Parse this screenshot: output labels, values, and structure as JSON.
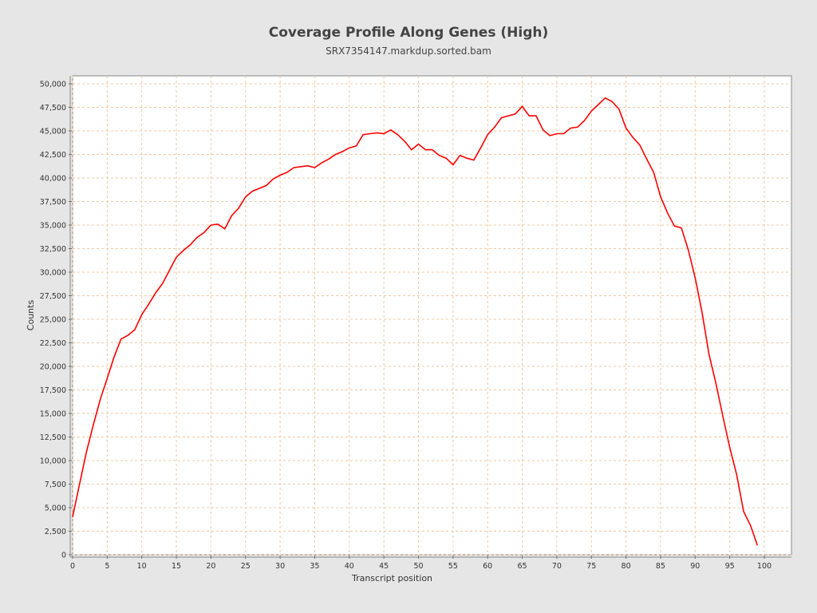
{
  "chart_data": {
    "type": "line",
    "title": "Coverage Profile Along Genes (High)",
    "subtitle": "SRX7354147.markdup.sorted.bam",
    "xlabel": "Transcript position",
    "ylabel": "Counts",
    "xlim": [
      0,
      104
    ],
    "ylim": [
      0,
      51000
    ],
    "xticks": [
      0,
      5,
      10,
      15,
      20,
      25,
      30,
      35,
      40,
      45,
      50,
      55,
      60,
      65,
      70,
      75,
      80,
      85,
      90,
      95,
      100
    ],
    "yticks": [
      0,
      2500,
      5000,
      7500,
      10000,
      12500,
      15000,
      17500,
      20000,
      22500,
      25000,
      27500,
      30000,
      32500,
      35000,
      37500,
      40000,
      42500,
      45000,
      47500,
      50000
    ],
    "grid": true,
    "colors": {
      "line": "#ff0000",
      "grid": "#f0c8a0",
      "background": "#e6e6e6",
      "plot": "#ffffff"
    },
    "series": [
      {
        "x": [
          0,
          1,
          2,
          3,
          4,
          5,
          6,
          7,
          8,
          9,
          10,
          11,
          12,
          13,
          14,
          15,
          16,
          17,
          18,
          19,
          20,
          21,
          22,
          23,
          24,
          25,
          26,
          27,
          28,
          29,
          30,
          31,
          32,
          33,
          34,
          35,
          36,
          37,
          38,
          39,
          40,
          41,
          42,
          43,
          44,
          45,
          46,
          47,
          48,
          49,
          50,
          51,
          52,
          53,
          54,
          55,
          56,
          57,
          58,
          59,
          60,
          61,
          62,
          63,
          64,
          65,
          66,
          67,
          68,
          69,
          70,
          71,
          72,
          73,
          74,
          75,
          76,
          77,
          78,
          79,
          80,
          81,
          82,
          83,
          84,
          85,
          86,
          87,
          88,
          89,
          90,
          91,
          92,
          93,
          94,
          95,
          96,
          97,
          98,
          99
        ],
        "values": [
          4000,
          7500,
          10900,
          13800,
          16500,
          18700,
          21000,
          22900,
          23300,
          23900,
          25500,
          26600,
          27800,
          28800,
          30200,
          31600,
          32300,
          32900,
          33700,
          34200,
          35000,
          35100,
          34600,
          36000,
          36800,
          38000,
          38600,
          38900,
          39200,
          39900,
          40300,
          40600,
          41100,
          41200,
          41300,
          41100,
          41600,
          42000,
          42500,
          42800,
          43200,
          43400,
          44600,
          44700,
          44800,
          44700,
          45100,
          44600,
          43900,
          43000,
          43600,
          43000,
          43000,
          42400,
          42100,
          41400,
          42400,
          42100,
          41900,
          43200,
          44600,
          45400,
          46400,
          46600,
          46800,
          47600,
          46600,
          46600,
          45100,
          44500,
          44700,
          44700,
          45300,
          45400,
          46100,
          47100,
          47800,
          48500,
          48100,
          47300,
          45300,
          44300,
          43500,
          42000,
          40600,
          38000,
          36300,
          34900,
          34700,
          32400,
          29400,
          25700,
          21300,
          18200,
          14700,
          11400,
          8500,
          4600,
          3100,
          1000
        ]
      }
    ]
  }
}
